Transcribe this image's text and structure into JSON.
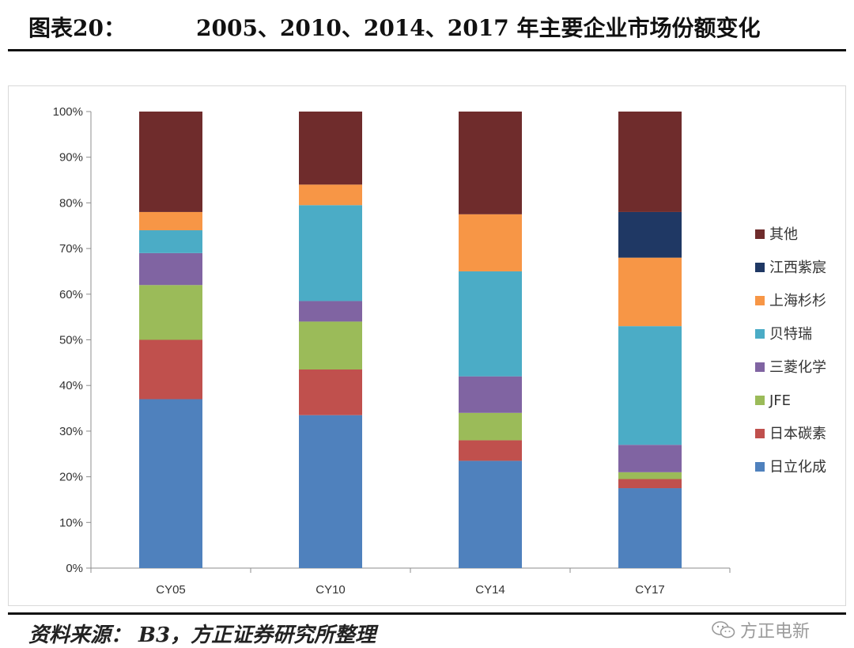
{
  "header": {
    "figure_label": "图表20：",
    "title": "2005、2010、2014、2017 年主要企业市场份额变化"
  },
  "footer": {
    "source": "资料来源： B3，方正证券研究所整理",
    "watermark": "方正电新",
    "watermark_icon": "wechat-icon"
  },
  "chart_data": {
    "type": "bar",
    "stacked": true,
    "percent": true,
    "categories": [
      "CY05",
      "CY10",
      "CY14",
      "CY17"
    ],
    "y_ticks": [
      "0%",
      "10%",
      "20%",
      "30%",
      "40%",
      "50%",
      "60%",
      "70%",
      "80%",
      "90%",
      "100%"
    ],
    "ylim": [
      0,
      100
    ],
    "grid": false,
    "legend_position": "right",
    "series": [
      {
        "name": "日立化成",
        "color": "#4f81bd",
        "values": [
          37,
          33.5,
          23.5,
          17.5
        ]
      },
      {
        "name": "日本碳素",
        "color": "#c0504d",
        "values": [
          13,
          10,
          4.5,
          2
        ]
      },
      {
        "name": "JFE",
        "color": "#9bbb59",
        "values": [
          12,
          10.5,
          6,
          1.5
        ]
      },
      {
        "name": "三菱化学",
        "color": "#8064a2",
        "values": [
          7,
          4.5,
          8,
          6
        ]
      },
      {
        "name": "贝特瑞",
        "color": "#4bacc6",
        "values": [
          5,
          21,
          23,
          26
        ]
      },
      {
        "name": "上海杉杉",
        "color": "#f79646",
        "values": [
          4,
          4.5,
          12.5,
          15
        ]
      },
      {
        "name": "江西紫宸",
        "color": "#1f3864",
        "values": [
          0,
          0,
          0,
          10
        ]
      },
      {
        "name": "其他",
        "color": "#6f2c2c",
        "values": [
          22,
          16,
          22.5,
          22
        ]
      }
    ]
  }
}
